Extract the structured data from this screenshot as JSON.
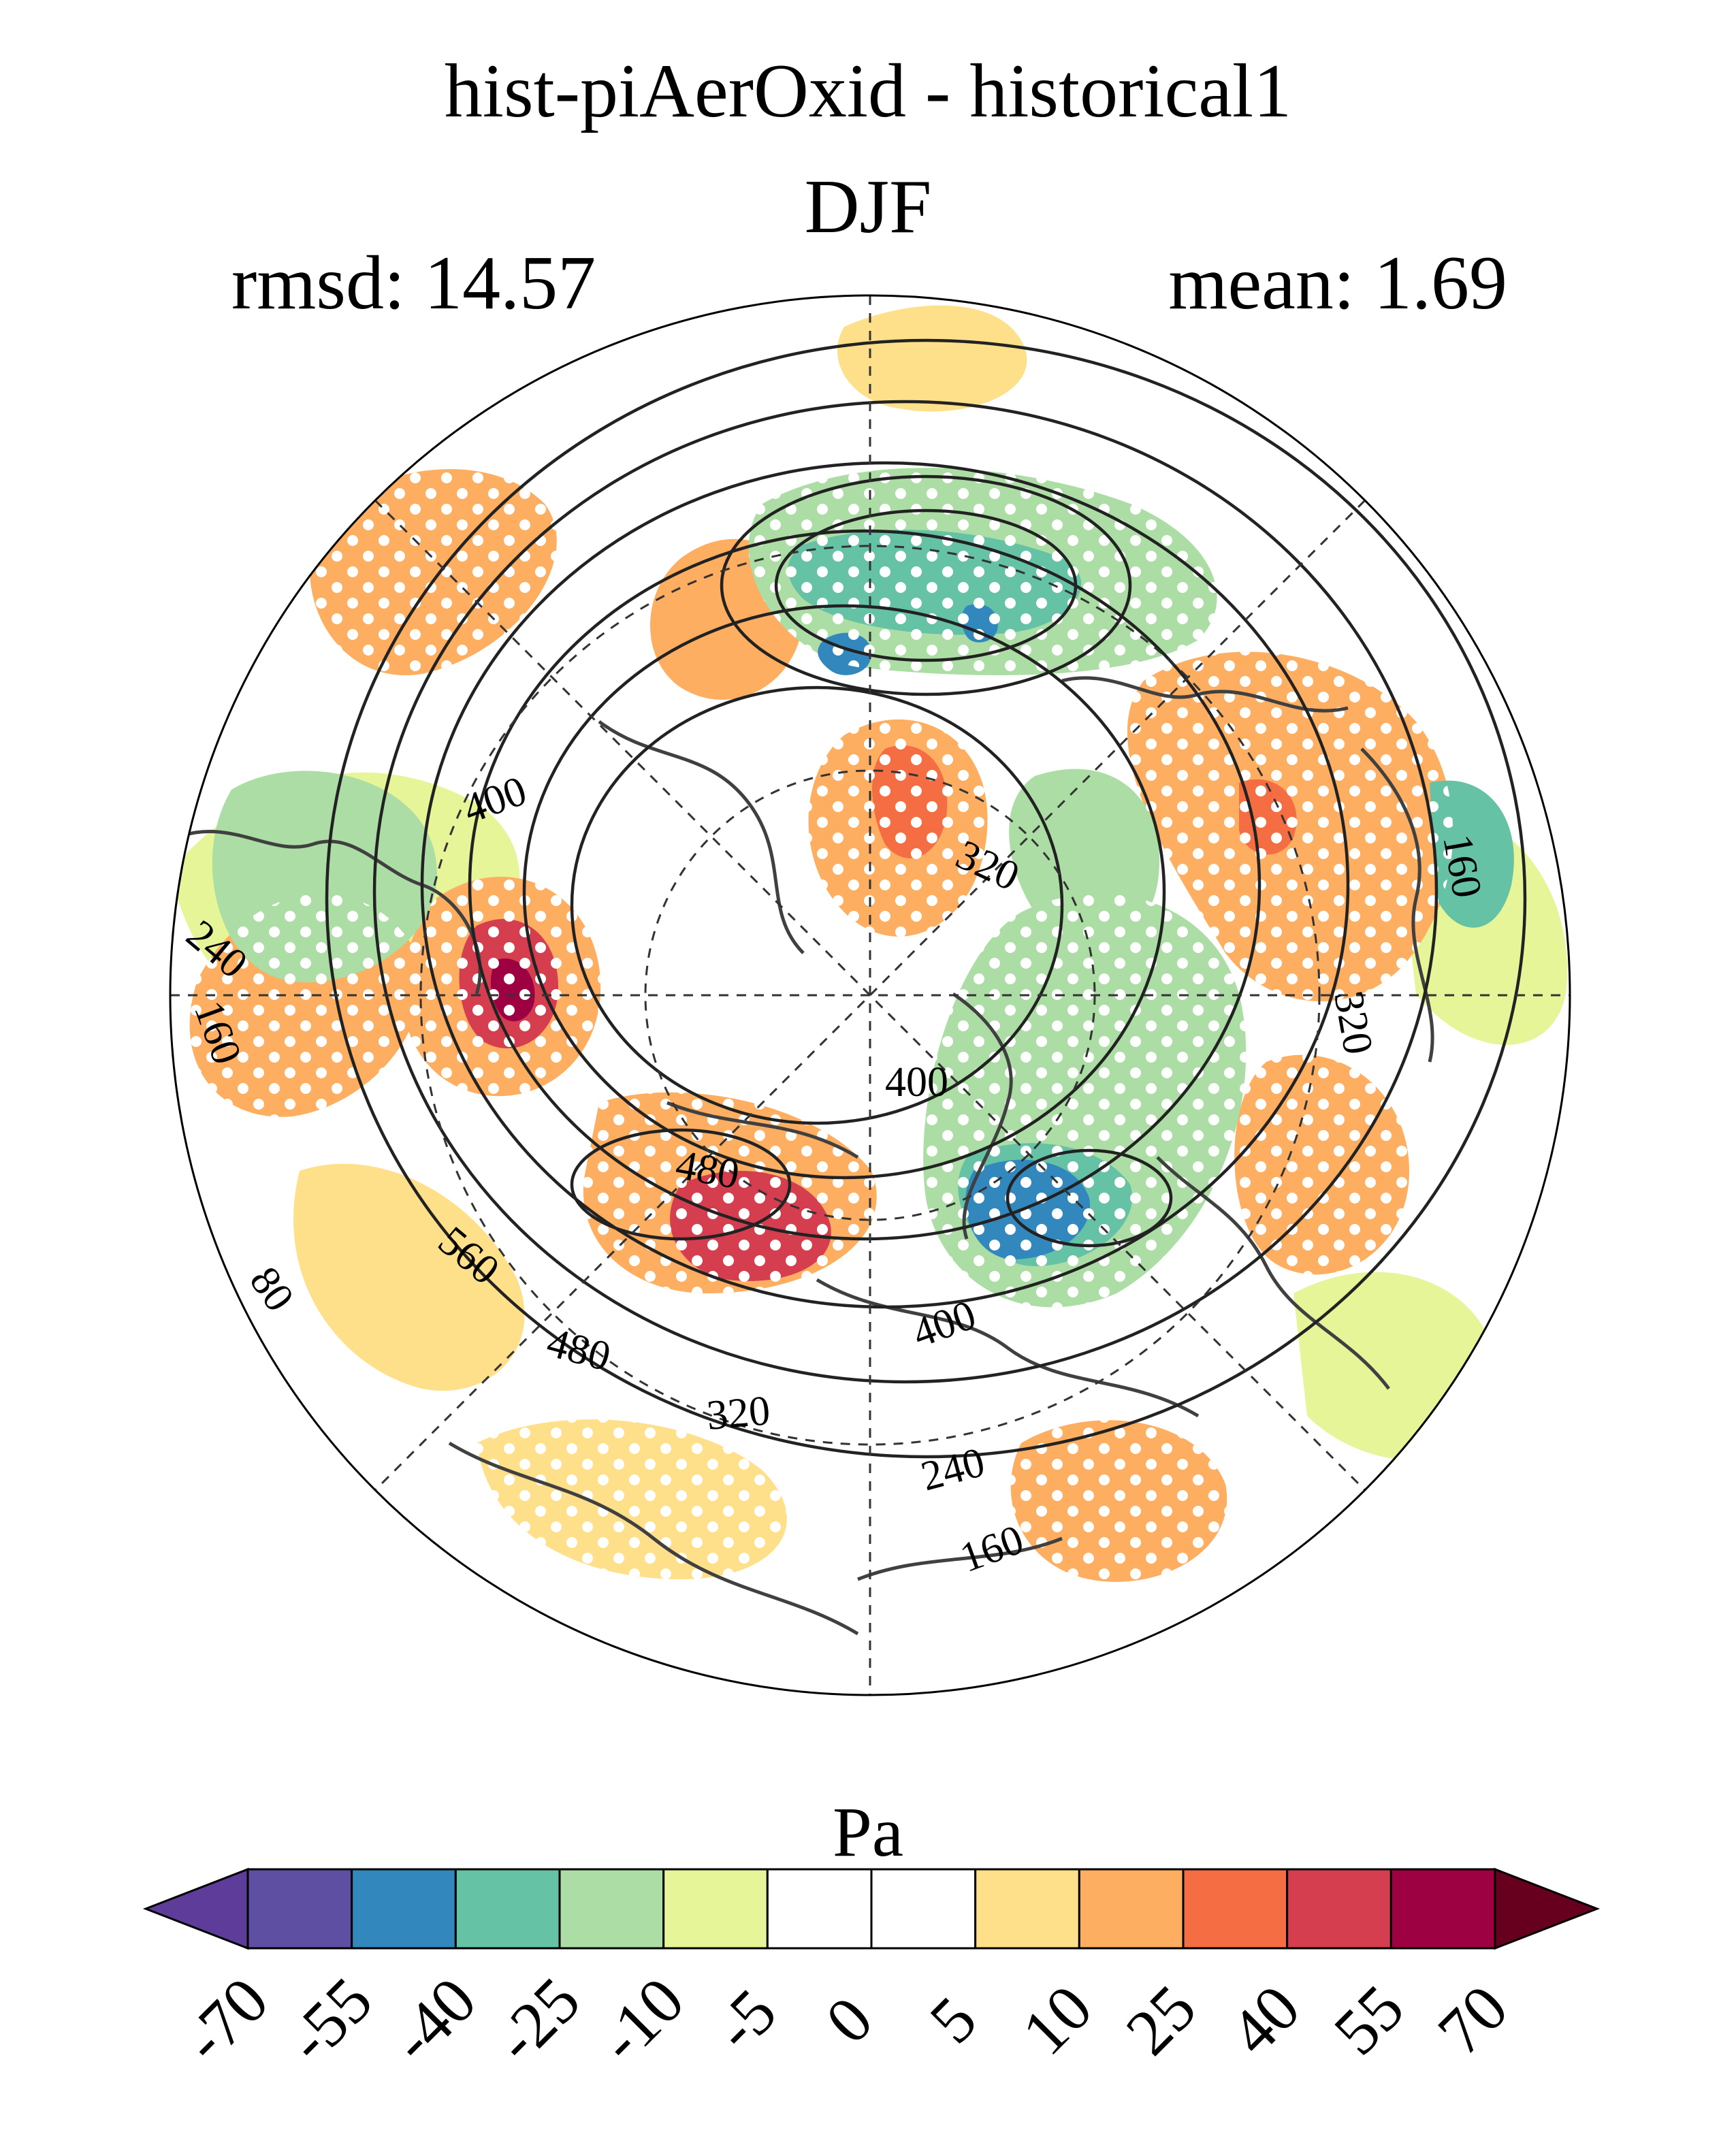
{
  "figure": {
    "title": "hist-piAerOxid - historical1",
    "season": "DJF",
    "rmsd_label": "rmsd: 14.57",
    "mean_label": "mean: 1.69"
  },
  "map": {
    "projection": "north polar stereographic",
    "contour_labels": [
      "400",
      "320",
      "240",
      "160",
      "400",
      "480",
      "560",
      "80",
      "480",
      "320",
      "240",
      "160",
      "400",
      "320",
      "160"
    ],
    "stippling": "white dots mark significant regions"
  },
  "colorbar": {
    "units": "Pa",
    "tick_labels": [
      "-70",
      "-55",
      "-40",
      "-25",
      "-10",
      "-5",
      "0",
      "5",
      "10",
      "25",
      "40",
      "55",
      "70"
    ],
    "colors": [
      "#5e3c99",
      "#5e4fa2",
      "#3288bd",
      "#66c2a5",
      "#abdda4",
      "#e6f598",
      "#ffffff",
      "#ffffff",
      "#fee08b",
      "#fdae61",
      "#f46d43",
      "#d53e4f",
      "#9e0142",
      "#67001f"
    ]
  }
}
